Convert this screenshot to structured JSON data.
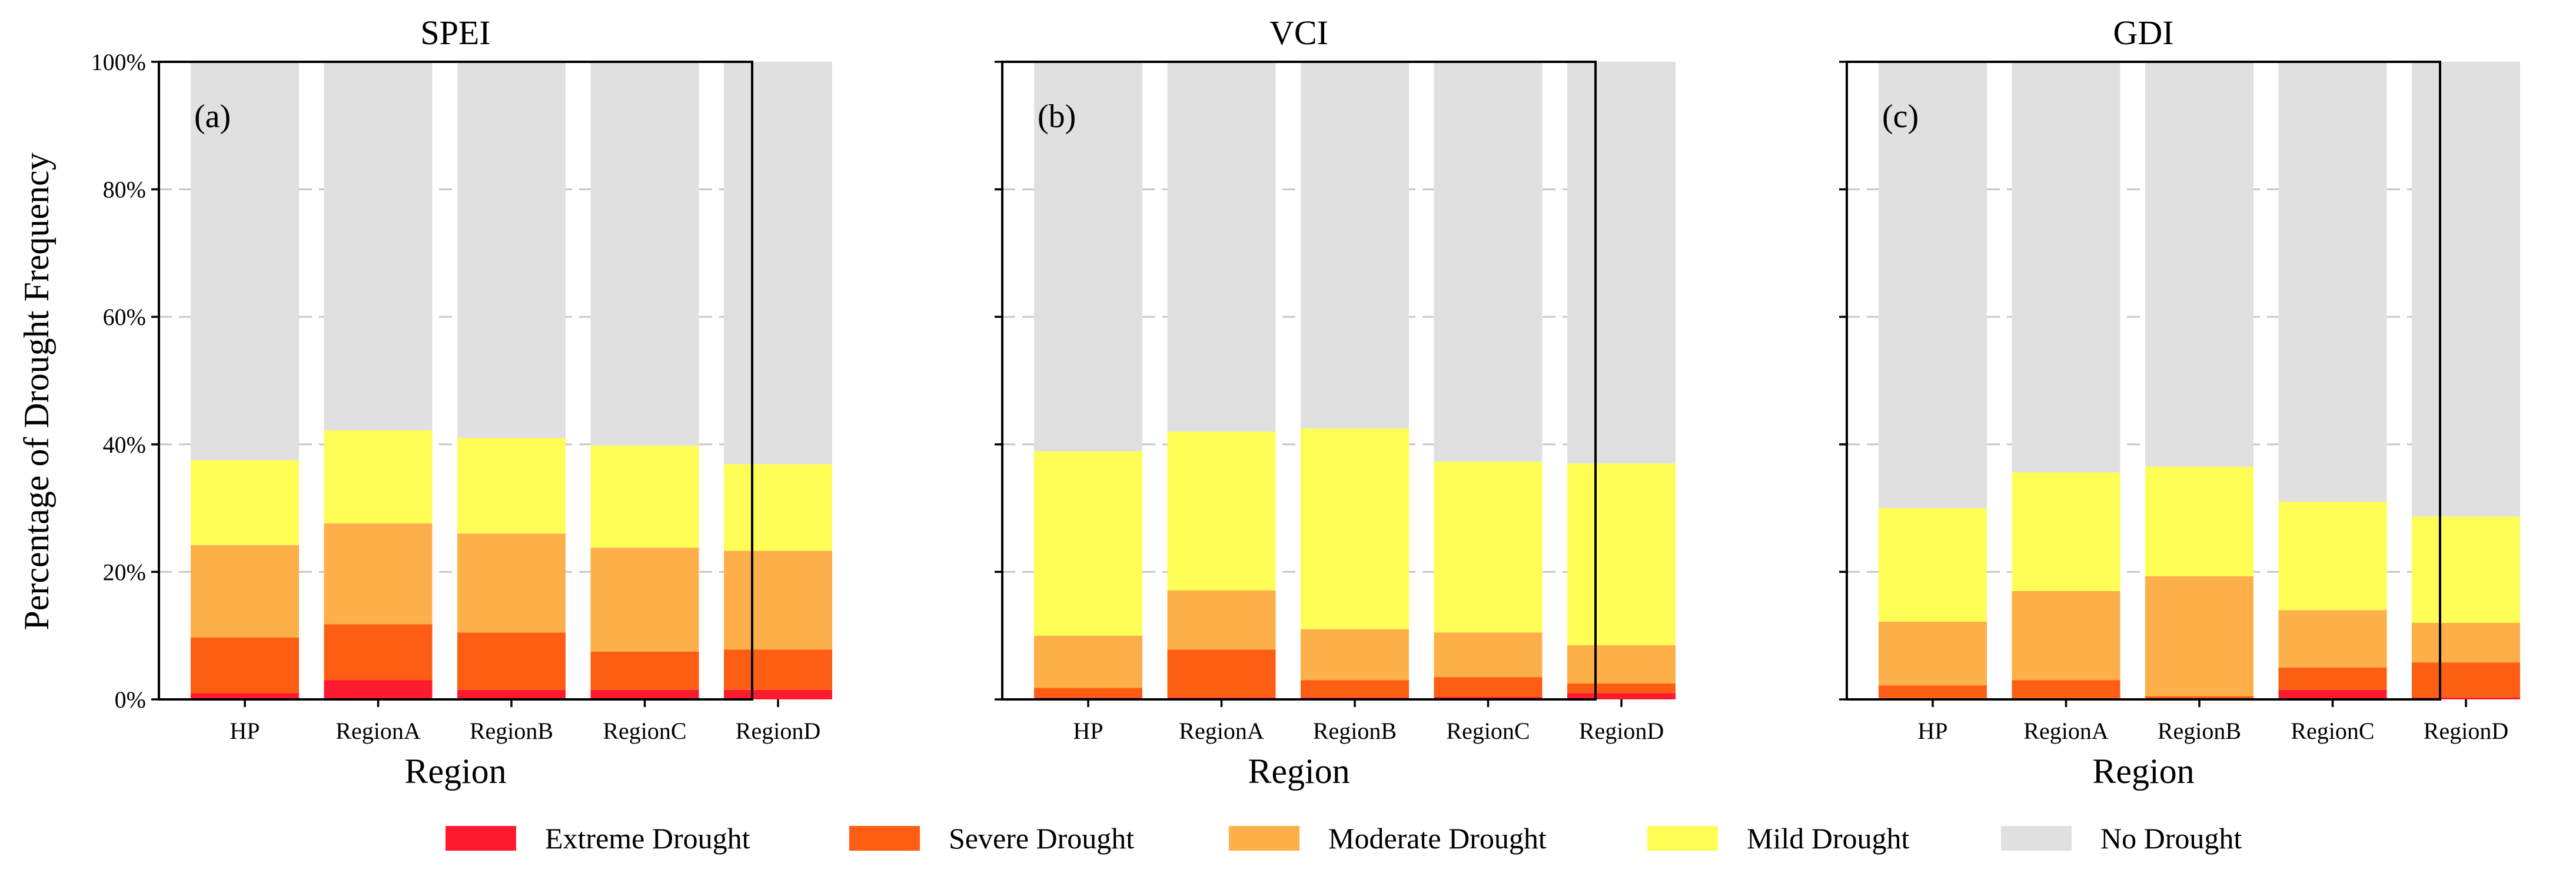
{
  "chart_data": {
    "type": "bar",
    "stacked": true,
    "ylabel": "Percentage of Drought Frequency",
    "ylim": [
      0,
      100
    ],
    "yticks": [
      0,
      20,
      40,
      60,
      80,
      100
    ],
    "ytick_labels": [
      "0%",
      "20%",
      "40%",
      "60%",
      "80%",
      "100%"
    ],
    "categories": [
      "HP",
      "RegionA",
      "RegionB",
      "RegionC",
      "RegionD"
    ],
    "legend_position": "bottom-center",
    "legend": [
      {
        "name": "Extreme Drought",
        "color": "#fe1a2e"
      },
      {
        "name": "Severe Drought",
        "color": "#fd5e13"
      },
      {
        "name": "Moderate Drought",
        "color": "#fdb04a"
      },
      {
        "name": "Mild Drought",
        "color": "#fefe56"
      },
      {
        "name": "No Drought",
        "color": "#e0e0e0"
      }
    ],
    "panels": [
      {
        "title": "SPEI",
        "letter": "(a)",
        "xlabel": "Region",
        "series": [
          {
            "name": "Extreme Drought",
            "values": [
              1.0,
              3.0,
              1.5,
              1.5,
              1.5
            ]
          },
          {
            "name": "Severe Drought",
            "values": [
              8.7,
              8.8,
              9.0,
              6.0,
              6.3
            ]
          },
          {
            "name": "Moderate Drought",
            "values": [
              14.5,
              15.8,
              15.5,
              16.3,
              15.5
            ]
          },
          {
            "name": "Mild Drought",
            "values": [
              13.3,
              14.6,
              15.0,
              16.0,
              13.6
            ]
          },
          {
            "name": "No Drought",
            "values": [
              62.5,
              57.8,
              59.0,
              60.2,
              63.1
            ]
          }
        ]
      },
      {
        "title": "VCI",
        "letter": "(b)",
        "xlabel": "Region",
        "series": [
          {
            "name": "Extreme Drought",
            "values": [
              0.3,
              0.3,
              0.3,
              0.4,
              1.0
            ]
          },
          {
            "name": "Severe Drought",
            "values": [
              1.5,
              7.5,
              2.7,
              3.1,
              1.5
            ]
          },
          {
            "name": "Moderate Drought",
            "values": [
              8.2,
              9.3,
              8.0,
              7.0,
              6.0
            ]
          },
          {
            "name": "Mild Drought",
            "values": [
              28.9,
              24.9,
              31.5,
              26.8,
              28.5
            ]
          },
          {
            "name": "No Drought",
            "values": [
              61.1,
              58.0,
              57.5,
              62.7,
              63.0
            ]
          }
        ]
      },
      {
        "title": "GDI",
        "letter": "(c)",
        "xlabel": "Region",
        "series": [
          {
            "name": "Extreme Drought",
            "values": [
              0.2,
              0.2,
              0.1,
              1.5,
              0.3
            ]
          },
          {
            "name": "Severe Drought",
            "values": [
              2.0,
              2.8,
              0.4,
              3.5,
              5.5
            ]
          },
          {
            "name": "Moderate Drought",
            "values": [
              10.0,
              14.0,
              18.8,
              9.0,
              6.2
            ]
          },
          {
            "name": "Mild Drought",
            "values": [
              17.8,
              18.6,
              17.2,
              17.0,
              16.7
            ]
          },
          {
            "name": "No Drought",
            "values": [
              70.0,
              64.4,
              63.5,
              69.0,
              71.3
            ]
          }
        ]
      }
    ]
  }
}
